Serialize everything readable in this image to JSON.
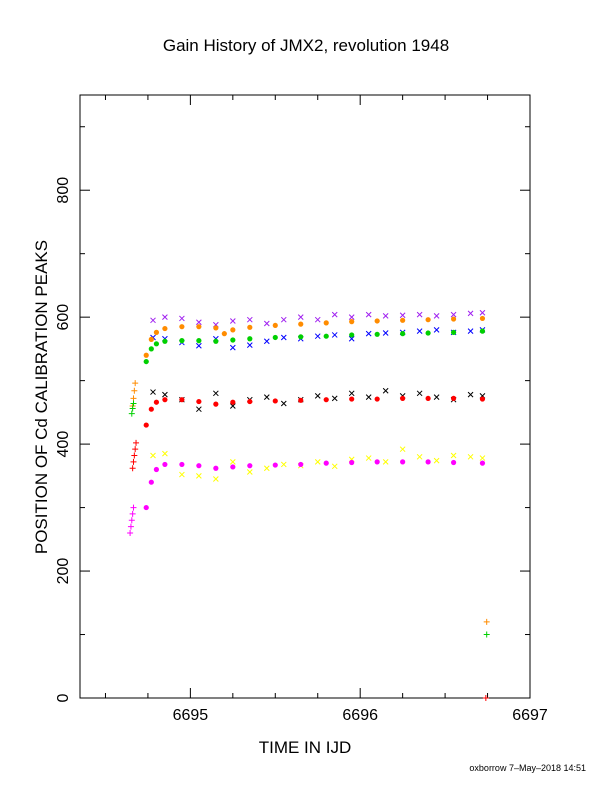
{
  "chart_data": {
    "type": "scatter",
    "title": "Gain History of JMX2, revolution 1948",
    "xlabel": "TIME IN IJD",
    "ylabel": "POSITION OF Cd CALIBRATION PEAKS",
    "xlim": [
      6694.35,
      6697.0
    ],
    "ylim": [
      0,
      950
    ],
    "x_ticks": [
      6695,
      6696,
      6697
    ],
    "y_ticks": [
      0,
      200,
      400,
      600,
      800
    ],
    "grid": false,
    "series": [
      {
        "color": "#a020f0",
        "marker": "x",
        "points": [
          [
            6694.78,
            595
          ],
          [
            6694.85,
            600
          ],
          [
            6694.95,
            598
          ],
          [
            6695.05,
            592
          ],
          [
            6695.15,
            588
          ],
          [
            6695.25,
            594
          ],
          [
            6695.35,
            596
          ],
          [
            6695.45,
            590
          ],
          [
            6695.55,
            596
          ],
          [
            6695.65,
            600
          ],
          [
            6695.75,
            596
          ],
          [
            6695.85,
            604
          ],
          [
            6695.95,
            600
          ],
          [
            6696.05,
            604
          ],
          [
            6696.15,
            602
          ],
          [
            6696.25,
            603
          ],
          [
            6696.35,
            604
          ],
          [
            6696.45,
            602
          ],
          [
            6696.55,
            604
          ],
          [
            6696.65,
            606
          ],
          [
            6696.72,
            607
          ]
        ]
      },
      {
        "color": "#0000ff",
        "marker": "x",
        "points": [
          [
            6694.78,
            568
          ],
          [
            6694.85,
            566
          ],
          [
            6694.95,
            560
          ],
          [
            6695.05,
            555
          ],
          [
            6695.15,
            566
          ],
          [
            6695.25,
            552
          ],
          [
            6695.35,
            556
          ],
          [
            6695.45,
            562
          ],
          [
            6695.55,
            568
          ],
          [
            6695.65,
            566
          ],
          [
            6695.75,
            570
          ],
          [
            6695.85,
            572
          ],
          [
            6695.95,
            566
          ],
          [
            6696.05,
            574
          ],
          [
            6696.15,
            575
          ],
          [
            6696.25,
            576
          ],
          [
            6696.35,
            578
          ],
          [
            6696.45,
            580
          ],
          [
            6696.55,
            576
          ],
          [
            6696.65,
            578
          ],
          [
            6696.72,
            580
          ]
        ]
      },
      {
        "color": "#ff8c00",
        "marker": "dot",
        "points": [
          [
            6694.74,
            540
          ],
          [
            6694.77,
            565
          ],
          [
            6694.8,
            576
          ],
          [
            6694.85,
            582
          ],
          [
            6694.95,
            585
          ],
          [
            6695.05,
            585
          ],
          [
            6695.15,
            583
          ],
          [
            6695.2,
            574
          ],
          [
            6695.25,
            580
          ],
          [
            6695.35,
            584
          ],
          [
            6695.5,
            587
          ],
          [
            6695.65,
            589
          ],
          [
            6695.8,
            591
          ],
          [
            6695.95,
            593
          ],
          [
            6696.1,
            594
          ],
          [
            6696.25,
            595
          ],
          [
            6696.4,
            596
          ],
          [
            6696.55,
            597
          ],
          [
            6696.72,
            598
          ]
        ]
      },
      {
        "color": "#00d000",
        "marker": "dot",
        "points": [
          [
            6694.74,
            530
          ],
          [
            6694.77,
            550
          ],
          [
            6694.8,
            558
          ],
          [
            6694.85,
            562
          ],
          [
            6694.95,
            563
          ],
          [
            6695.05,
            563
          ],
          [
            6695.15,
            562
          ],
          [
            6695.25,
            564
          ],
          [
            6695.35,
            566
          ],
          [
            6695.5,
            568
          ],
          [
            6695.65,
            569
          ],
          [
            6695.8,
            570
          ],
          [
            6695.95,
            572
          ],
          [
            6696.1,
            573
          ],
          [
            6696.25,
            574
          ],
          [
            6696.4,
            575
          ],
          [
            6696.55,
            576
          ],
          [
            6696.72,
            578
          ]
        ]
      },
      {
        "color": "#000000",
        "marker": "x",
        "points": [
          [
            6694.78,
            482
          ],
          [
            6694.85,
            478
          ],
          [
            6694.95,
            470
          ],
          [
            6695.05,
            455
          ],
          [
            6695.15,
            480
          ],
          [
            6695.25,
            460
          ],
          [
            6695.35,
            470
          ],
          [
            6695.45,
            474
          ],
          [
            6695.55,
            464
          ],
          [
            6695.65,
            470
          ],
          [
            6695.75,
            476
          ],
          [
            6695.85,
            472
          ],
          [
            6695.95,
            480
          ],
          [
            6696.05,
            474
          ],
          [
            6696.15,
            484
          ],
          [
            6696.25,
            476
          ],
          [
            6696.35,
            480
          ],
          [
            6696.45,
            474
          ],
          [
            6696.55,
            470
          ],
          [
            6696.65,
            478
          ],
          [
            6696.72,
            476
          ]
        ]
      },
      {
        "color": "#ff0000",
        "marker": "dot",
        "points": [
          [
            6694.74,
            430
          ],
          [
            6694.77,
            455
          ],
          [
            6694.8,
            466
          ],
          [
            6694.85,
            470
          ],
          [
            6694.95,
            470
          ],
          [
            6695.05,
            467
          ],
          [
            6695.15,
            463
          ],
          [
            6695.25,
            466
          ],
          [
            6695.35,
            467
          ],
          [
            6695.5,
            468
          ],
          [
            6695.65,
            469
          ],
          [
            6695.8,
            470
          ],
          [
            6695.95,
            471
          ],
          [
            6696.1,
            471
          ],
          [
            6696.25,
            472
          ],
          [
            6696.4,
            472
          ],
          [
            6696.55,
            472
          ],
          [
            6696.72,
            471
          ]
        ]
      },
      {
        "color": "#ffff00",
        "marker": "x",
        "points": [
          [
            6694.78,
            382
          ],
          [
            6694.85,
            385
          ],
          [
            6694.95,
            352
          ],
          [
            6695.05,
            350
          ],
          [
            6695.15,
            345
          ],
          [
            6695.25,
            372
          ],
          [
            6695.35,
            356
          ],
          [
            6695.45,
            362
          ],
          [
            6695.55,
            368
          ],
          [
            6695.65,
            366
          ],
          [
            6695.75,
            372
          ],
          [
            6695.85,
            365
          ],
          [
            6695.95,
            376
          ],
          [
            6696.05,
            378
          ],
          [
            6696.15,
            372
          ],
          [
            6696.25,
            392
          ],
          [
            6696.35,
            380
          ],
          [
            6696.45,
            374
          ],
          [
            6696.55,
            382
          ],
          [
            6696.65,
            380
          ],
          [
            6696.72,
            378
          ]
        ]
      },
      {
        "color": "#ff00ff",
        "marker": "dot",
        "points": [
          [
            6694.74,
            300
          ],
          [
            6694.77,
            340
          ],
          [
            6694.8,
            360
          ],
          [
            6694.85,
            368
          ],
          [
            6694.95,
            368
          ],
          [
            6695.05,
            366
          ],
          [
            6695.15,
            362
          ],
          [
            6695.25,
            364
          ],
          [
            6695.35,
            366
          ],
          [
            6695.5,
            367
          ],
          [
            6695.65,
            368
          ],
          [
            6695.8,
            370
          ],
          [
            6695.95,
            371
          ],
          [
            6696.1,
            372
          ],
          [
            6696.25,
            372
          ],
          [
            6696.4,
            372
          ],
          [
            6696.55,
            371
          ],
          [
            6696.72,
            370
          ]
        ]
      },
      {
        "color": "#ff0000",
        "marker": "plus",
        "points": [
          [
            6694.66,
            362
          ],
          [
            6694.665,
            372
          ],
          [
            6694.67,
            382
          ],
          [
            6694.675,
            392
          ],
          [
            6694.68,
            402
          ],
          [
            6696.74,
            0
          ]
        ]
      },
      {
        "color": "#ff00ff",
        "marker": "plus",
        "points": [
          [
            6694.645,
            260
          ],
          [
            6694.65,
            270
          ],
          [
            6694.655,
            280
          ],
          [
            6694.66,
            290
          ],
          [
            6694.665,
            300
          ]
        ]
      },
      {
        "color": "#ff8c00",
        "marker": "plus",
        "points": [
          [
            6694.66,
            460
          ],
          [
            6694.665,
            472
          ],
          [
            6694.67,
            484
          ],
          [
            6694.675,
            496
          ],
          [
            6696.745,
            120
          ]
        ]
      },
      {
        "color": "#00d000",
        "marker": "plus",
        "points": [
          [
            6694.655,
            448
          ],
          [
            6694.66,
            456
          ],
          [
            6694.665,
            464
          ],
          [
            6696.745,
            100
          ]
        ]
      }
    ]
  },
  "credit": "oxborrow  7–May–2018 14:51"
}
